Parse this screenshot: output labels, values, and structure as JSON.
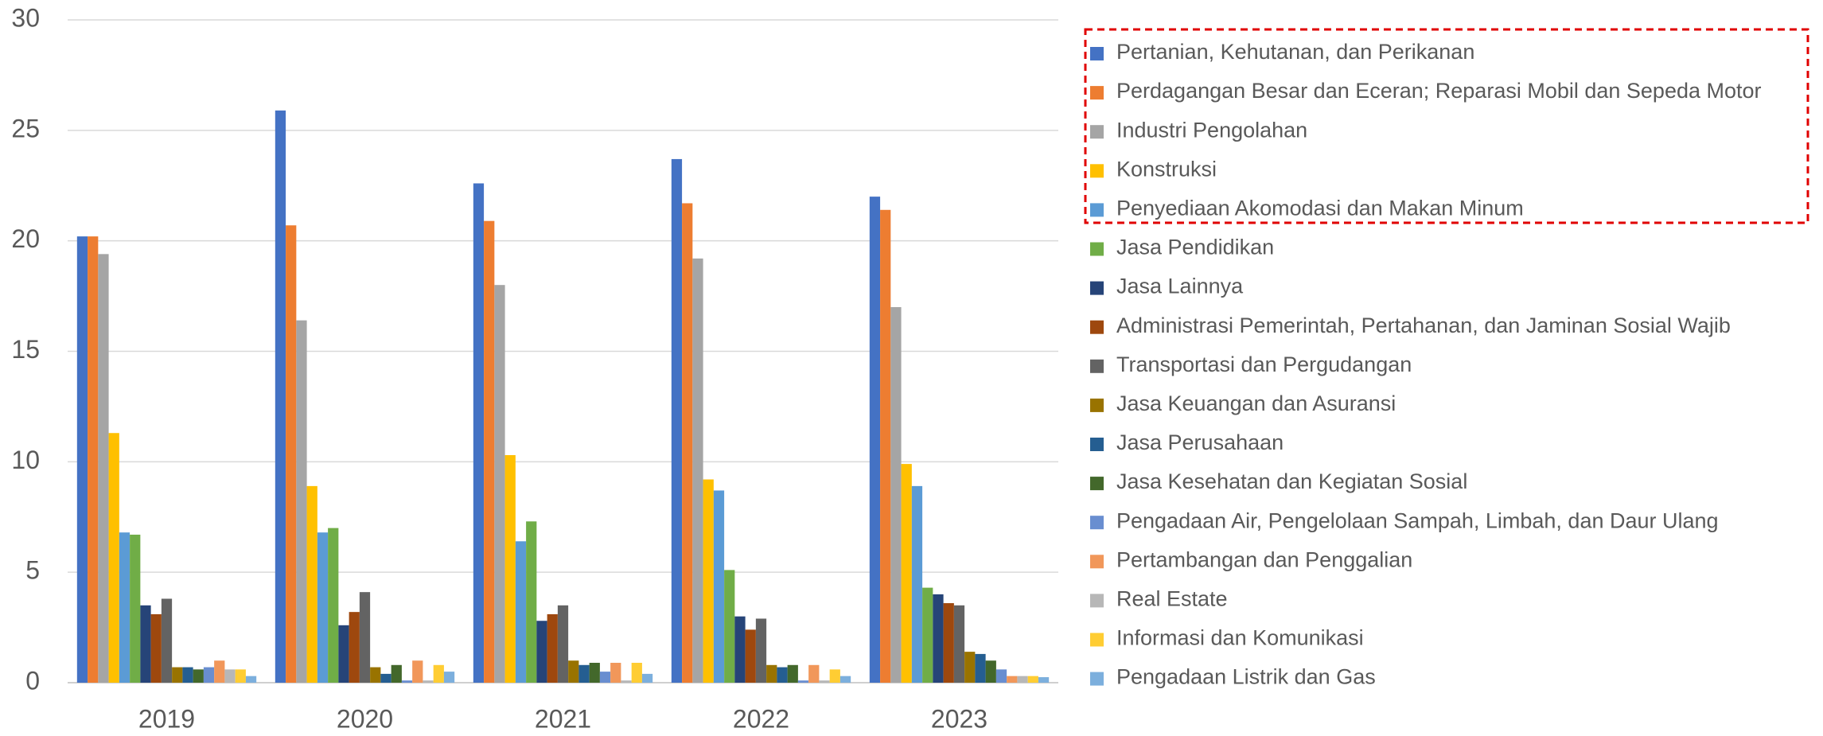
{
  "chart_data": {
    "type": "bar",
    "categories": [
      "2019",
      "2020",
      "2021",
      "2022",
      "2023"
    ],
    "ylim": [
      0,
      30
    ],
    "yticks": [
      0,
      5,
      10,
      15,
      20,
      25,
      30
    ],
    "grid": true,
    "series": [
      {
        "name": "Pertanian, Kehutanan, dan Perikanan",
        "color": "#4472c4",
        "values": [
          20.2,
          25.9,
          22.6,
          23.7,
          22.0
        ]
      },
      {
        "name": "Perdagangan Besar dan Eceran; Reparasi Mobil dan Sepeda Motor",
        "color": "#ed7d31",
        "values": [
          20.2,
          20.7,
          20.9,
          21.7,
          21.4
        ]
      },
      {
        "name": "Industri Pengolahan",
        "color": "#a5a5a5",
        "values": [
          19.4,
          16.4,
          18.0,
          19.2,
          17.0
        ]
      },
      {
        "name": "Konstruksi",
        "color": "#ffc000",
        "values": [
          11.3,
          8.9,
          10.3,
          9.2,
          9.9
        ]
      },
      {
        "name": "Penyediaan Akomodasi dan Makan Minum",
        "color": "#5b9bd5",
        "values": [
          6.8,
          6.8,
          6.4,
          8.7,
          8.9
        ]
      },
      {
        "name": "Jasa Pendidikan",
        "color": "#70ad47",
        "values": [
          6.7,
          7.0,
          7.3,
          5.1,
          4.3
        ]
      },
      {
        "name": "Jasa Lainnya",
        "color": "#264478",
        "values": [
          3.5,
          2.6,
          2.8,
          3.0,
          4.0
        ]
      },
      {
        "name": "Administrasi Pemerintah, Pertahanan, dan Jaminan Sosial Wajib",
        "color": "#9e480e",
        "values": [
          3.1,
          3.2,
          3.1,
          2.4,
          3.6
        ]
      },
      {
        "name": "Transportasi dan Pergudangan",
        "color": "#636363",
        "values": [
          3.8,
          4.1,
          3.5,
          2.9,
          3.5
        ]
      },
      {
        "name": "Jasa Keuangan dan Asuransi",
        "color": "#997300",
        "values": [
          0.7,
          0.7,
          1.0,
          0.8,
          1.4
        ]
      },
      {
        "name": "Jasa Perusahaan",
        "color": "#255e91",
        "values": [
          0.7,
          0.4,
          0.8,
          0.7,
          1.3
        ]
      },
      {
        "name": "Jasa Kesehatan dan Kegiatan Sosial",
        "color": "#43682b",
        "values": [
          0.6,
          0.8,
          0.9,
          0.8,
          1.0
        ]
      },
      {
        "name": "Pengadaan Air, Pengelolaan Sampah, Limbah, dan Daur Ulang",
        "color": "#698ed0",
        "values": [
          0.7,
          0.1,
          0.5,
          0.1,
          0.6
        ]
      },
      {
        "name": "Pertambangan dan Penggalian",
        "color": "#f1975a",
        "values": [
          1.0,
          1.0,
          0.9,
          0.8,
          0.3
        ]
      },
      {
        "name": "Real Estate",
        "color": "#b7b7b7",
        "values": [
          0.6,
          0.1,
          0.1,
          0.1,
          0.3
        ]
      },
      {
        "name": "Informasi dan Komunikasi",
        "color": "#ffcd33",
        "values": [
          0.6,
          0.8,
          0.9,
          0.6,
          0.3
        ]
      },
      {
        "name": "Pengadaan Listrik dan Gas",
        "color": "#7cafdd",
        "values": [
          0.3,
          0.5,
          0.4,
          0.3,
          0.25
        ]
      }
    ]
  }
}
